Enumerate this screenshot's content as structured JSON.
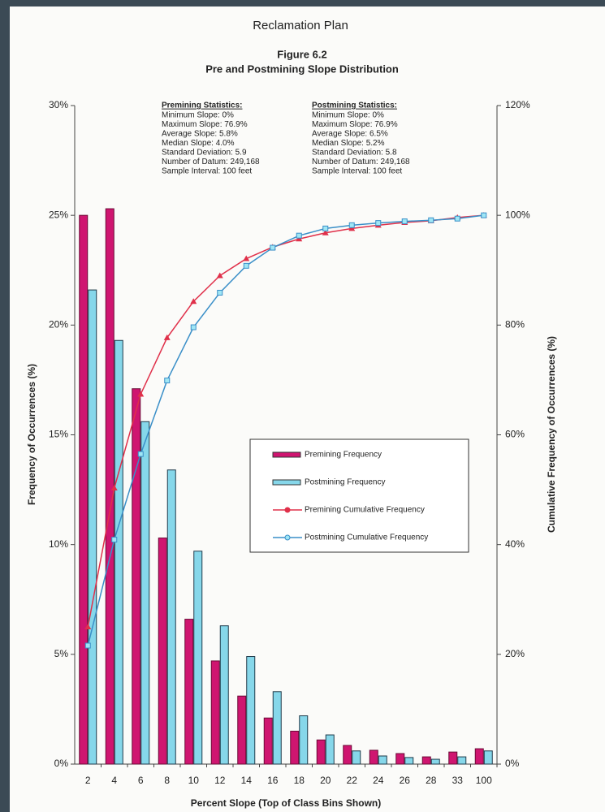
{
  "header": "Reclamation Plan",
  "chart_data": {
    "type": "bar",
    "title": "Figure 6.2",
    "subtitle": "Pre and Postmining Slope Distribution",
    "x_label": "Percent Slope (Top of Class Bins Shown)",
    "y_label": "Frequency of Occurrences (%)",
    "y2_label": "Cumulative Frequency of Occurrences (%)",
    "categories": [
      "2",
      "4",
      "6",
      "8",
      "10",
      "12",
      "14",
      "16",
      "18",
      "20",
      "22",
      "24",
      "26",
      "28",
      "33",
      "100"
    ],
    "ylim": [
      0,
      30
    ],
    "yticks": [
      {
        "value": 0,
        "label": "0%"
      },
      {
        "value": 5,
        "label": "5%"
      },
      {
        "value": 10,
        "label": "10%"
      },
      {
        "value": 15,
        "label": "15%"
      },
      {
        "value": 20,
        "label": "20%"
      },
      {
        "value": 25,
        "label": "25%"
      },
      {
        "value": 30,
        "label": "30%"
      }
    ],
    "y2lim": [
      0,
      120
    ],
    "y2ticks": [
      {
        "value": 0,
        "label": "0%"
      },
      {
        "value": 20,
        "label": "20%"
      },
      {
        "value": 40,
        "label": "40%"
      },
      {
        "value": 60,
        "label": "60%"
      },
      {
        "value": 80,
        "label": "80%"
      },
      {
        "value": 100,
        "label": "100%"
      },
      {
        "value": 120,
        "label": "120%"
      }
    ],
    "series": [
      {
        "name": "Premining Frequency",
        "type": "bar",
        "color": "#cf1570",
        "values": [
          25.0,
          25.3,
          17.1,
          10.3,
          6.6,
          4.7,
          3.1,
          2.1,
          1.5,
          1.1,
          0.85,
          0.63,
          0.48,
          0.33,
          0.55,
          0.7
        ]
      },
      {
        "name": "Postmining Frequency",
        "type": "bar",
        "color": "#86d7ea",
        "values": [
          21.6,
          19.3,
          15.6,
          13.4,
          9.7,
          6.3,
          4.9,
          3.3,
          2.2,
          1.33,
          0.6,
          0.37,
          0.3,
          0.22,
          0.33,
          0.6
        ]
      },
      {
        "name": "Premining Cumulative Frequency",
        "type": "line",
        "axis": "y2",
        "color": "#e0304a",
        "values": [
          25.0,
          50.3,
          67.4,
          77.7,
          84.3,
          89.0,
          92.1,
          94.2,
          95.7,
          96.8,
          97.6,
          98.2,
          98.7,
          99.0,
          99.6,
          100
        ]
      },
      {
        "name": "Postmining Cumulative Frequency",
        "type": "line",
        "axis": "y2",
        "color": "#3a8fc8",
        "values": [
          21.6,
          40.9,
          56.5,
          69.9,
          79.6,
          85.9,
          90.8,
          94.1,
          96.3,
          97.6,
          98.2,
          98.6,
          98.9,
          99.1,
          99.4,
          100
        ]
      }
    ],
    "annotations": [
      {
        "title": "Premining Statistics:",
        "lines": [
          "Minimum Slope: 0%",
          "Maximum Slope: 76.9%",
          "Average Slope: 5.8%",
          "Median Slope: 4.0%",
          "Standard Deviation: 5.9",
          "Number of Datum: 249,168",
          "Sample Interval: 100 feet"
        ]
      },
      {
        "title": "Postmining Statistics:",
        "lines": [
          "Minimum Slope: 0%",
          "Maximum Slope: 76.9%",
          "Average Slope: 6.5%",
          "Median Slope: 5.2%",
          "Standard Deviation: 5.8",
          "Number of Datum: 249,168",
          "Sample Interval: 100 feet"
        ]
      }
    ]
  }
}
